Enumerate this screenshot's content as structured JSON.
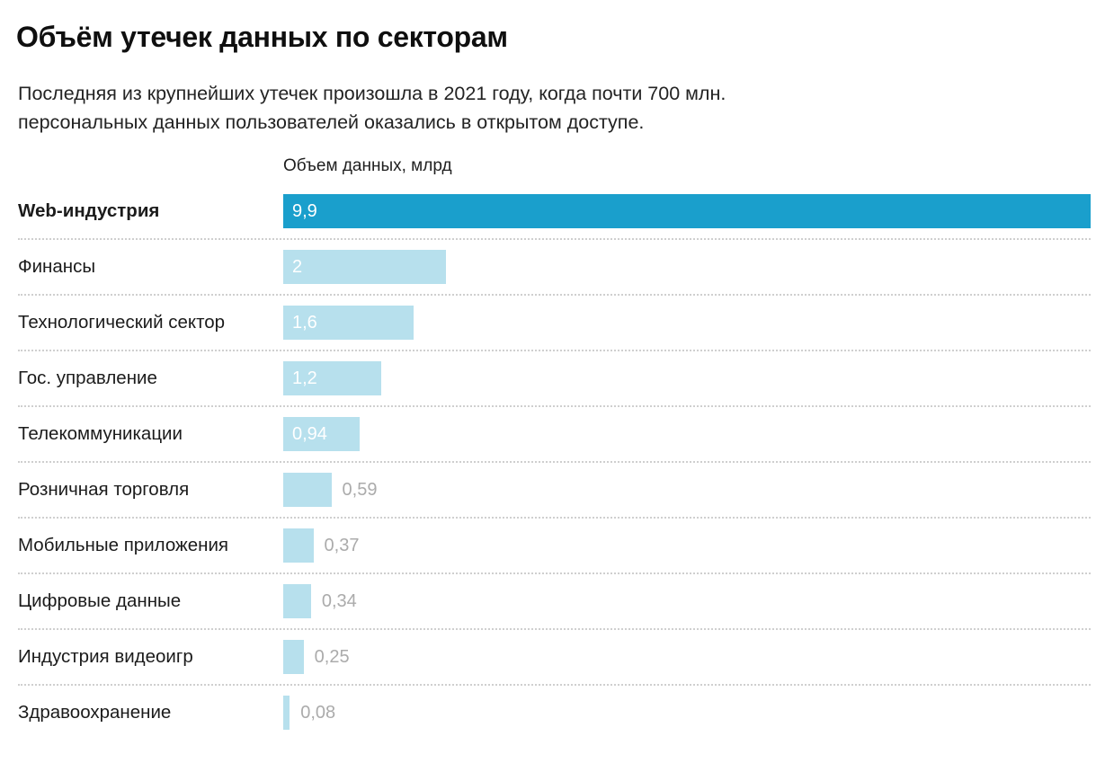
{
  "title": "Объём утечек данных по секторам",
  "subtitle_lines": [
    "Последняя из крупнейших утечек произошла в 2021 году, когда почти 700 млн.",
    "персональных данных пользователей оказались в открытом доступе."
  ],
  "colors": {
    "bar_primary": "#1a9fcc",
    "bar_secondary": "#b7e0ed",
    "value_inside": "#ffffff",
    "value_outside": "#ababab",
    "separator": "#cfcfcf"
  },
  "chart_data": {
    "type": "bar",
    "orientation": "horizontal",
    "title": "Объём утечек данных по секторам",
    "xlabel": "Объем данных, млрд",
    "xlim": [
      0,
      9.9
    ],
    "grid": false,
    "legend": false,
    "categories": [
      "Web-индустрия",
      "Финансы",
      "Технологический сектор",
      "Гос. управление",
      "Телекоммуникации",
      "Розничная торговля",
      "Мобильные приложения",
      "Цифровые данные",
      "Индустрия видеоигр",
      "Здравоохранение"
    ],
    "values": [
      9.9,
      2,
      1.6,
      1.2,
      0.94,
      0.59,
      0.37,
      0.34,
      0.25,
      0.08
    ],
    "value_labels": [
      "9,9",
      "2",
      "1,6",
      "1,2",
      "0,94",
      "0,59",
      "0,37",
      "0,34",
      "0,25",
      "0,08"
    ],
    "emphasized_category": "Web-индустрия",
    "highlighted_category": "Web-индустрия"
  }
}
